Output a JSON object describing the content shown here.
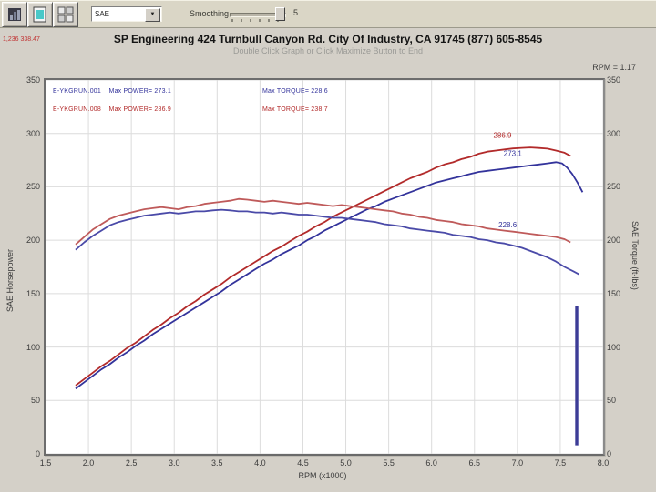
{
  "toolbar": {
    "dropdown_value": "SAE",
    "smoothing_label": "Smoothing",
    "smoothing_value": "5"
  },
  "header": {
    "readout": "1,236 338.47",
    "title": "SP Engineering 424 Turnbull Canyon Rd. City Of Industry, CA 91745 (877) 605-8545",
    "subtitle": "Double Click Graph or Click Maximize Button to End",
    "rpm_readout": "RPM = 1.17"
  },
  "chart_data": {
    "type": "line",
    "title": "SP Engineering 424 Turnbull Canyon Rd. City Of Industry, CA 91745 (877) 605-8545",
    "xlabel": "RPM (x1000)",
    "ylabel_left": "SAE Horsepower",
    "ylabel_right": "SAE Torque (ft-lbs)",
    "xlim": [
      1.5,
      8.0
    ],
    "ylim": [
      0,
      350
    ],
    "grid": true,
    "grid_color": "#dcdcdc",
    "x_tick_labels": [
      "1.5",
      "2.0",
      "2.5",
      "3.0",
      "3.5",
      "4.0",
      "4.5",
      "5.0",
      "5.5",
      "6.0",
      "6.5",
      "7.0",
      "7.5",
      "8.0"
    ],
    "y_tick_labels": [
      "0",
      "50",
      "100",
      "150",
      "200",
      "250",
      "300",
      "350"
    ],
    "legend": {
      "left": [
        {
          "file": "E-YKGRUN.001",
          "label": "Max POWER= 273.1",
          "color": "#33339b"
        },
        {
          "file": "E-YKGRUN.008",
          "label": "Max POWER= 286.9",
          "color": "#b22a2a"
        }
      ],
      "right": [
        {
          "label": "Max TORQUE= 228.6",
          "color": "#33339b"
        },
        {
          "label": "Max TORQUE= 238.7",
          "color": "#b22a2a"
        }
      ]
    },
    "series": [
      {
        "name": "horsepower-run008-red",
        "color": "#b22a2a",
        "width": 1.8,
        "points": [
          [
            1.85,
            64
          ],
          [
            1.95,
            70
          ],
          [
            2.05,
            76
          ],
          [
            2.15,
            82
          ],
          [
            2.25,
            87
          ],
          [
            2.35,
            93
          ],
          [
            2.45,
            99
          ],
          [
            2.55,
            104
          ],
          [
            2.65,
            110
          ],
          [
            2.75,
            116
          ],
          [
            2.85,
            121
          ],
          [
            2.95,
            127
          ],
          [
            3.05,
            132
          ],
          [
            3.15,
            138
          ],
          [
            3.25,
            143
          ],
          [
            3.35,
            149
          ],
          [
            3.45,
            154
          ],
          [
            3.55,
            159
          ],
          [
            3.65,
            165
          ],
          [
            3.75,
            170
          ],
          [
            3.85,
            175
          ],
          [
            3.95,
            180
          ],
          [
            4.05,
            185
          ],
          [
            4.15,
            190
          ],
          [
            4.25,
            194
          ],
          [
            4.35,
            199
          ],
          [
            4.45,
            204
          ],
          [
            4.55,
            208
          ],
          [
            4.65,
            213
          ],
          [
            4.75,
            217
          ],
          [
            4.85,
            222
          ],
          [
            4.95,
            226
          ],
          [
            5.05,
            230
          ],
          [
            5.15,
            234
          ],
          [
            5.25,
            238
          ],
          [
            5.35,
            242
          ],
          [
            5.45,
            246
          ],
          [
            5.55,
            250
          ],
          [
            5.65,
            254
          ],
          [
            5.75,
            258
          ],
          [
            5.85,
            261
          ],
          [
            5.95,
            264
          ],
          [
            6.05,
            268
          ],
          [
            6.15,
            271
          ],
          [
            6.25,
            273
          ],
          [
            6.35,
            276
          ],
          [
            6.45,
            278
          ],
          [
            6.55,
            281
          ],
          [
            6.65,
            283
          ],
          [
            6.75,
            284
          ],
          [
            6.85,
            285
          ],
          [
            6.95,
            286
          ],
          [
            7.05,
            286.5
          ],
          [
            7.15,
            286.9
          ],
          [
            7.25,
            286.4
          ],
          [
            7.35,
            285.8
          ],
          [
            7.45,
            284
          ],
          [
            7.55,
            282
          ],
          [
            7.62,
            279
          ]
        ]
      },
      {
        "name": "horsepower-run001-blue",
        "color": "#33339b",
        "width": 1.8,
        "points": [
          [
            1.85,
            61
          ],
          [
            1.95,
            67
          ],
          [
            2.05,
            73
          ],
          [
            2.15,
            79
          ],
          [
            2.25,
            84
          ],
          [
            2.35,
            90
          ],
          [
            2.45,
            95
          ],
          [
            2.55,
            101
          ],
          [
            2.65,
            106
          ],
          [
            2.75,
            112
          ],
          [
            2.85,
            117
          ],
          [
            2.95,
            122
          ],
          [
            3.05,
            127
          ],
          [
            3.15,
            132
          ],
          [
            3.25,
            137
          ],
          [
            3.35,
            142
          ],
          [
            3.45,
            147
          ],
          [
            3.55,
            152
          ],
          [
            3.65,
            158
          ],
          [
            3.75,
            163
          ],
          [
            3.85,
            168
          ],
          [
            3.95,
            173
          ],
          [
            4.05,
            178
          ],
          [
            4.15,
            182
          ],
          [
            4.25,
            187
          ],
          [
            4.35,
            191
          ],
          [
            4.45,
            195
          ],
          [
            4.55,
            200
          ],
          [
            4.65,
            204
          ],
          [
            4.75,
            209
          ],
          [
            4.85,
            213
          ],
          [
            4.95,
            217
          ],
          [
            5.05,
            221
          ],
          [
            5.15,
            225
          ],
          [
            5.25,
            229
          ],
          [
            5.35,
            232
          ],
          [
            5.45,
            236
          ],
          [
            5.55,
            239
          ],
          [
            5.65,
            242
          ],
          [
            5.75,
            245
          ],
          [
            5.85,
            248
          ],
          [
            5.95,
            251
          ],
          [
            6.05,
            254
          ],
          [
            6.15,
            256
          ],
          [
            6.25,
            258
          ],
          [
            6.35,
            260
          ],
          [
            6.45,
            262
          ],
          [
            6.55,
            264
          ],
          [
            6.65,
            265
          ],
          [
            6.75,
            266
          ],
          [
            6.85,
            267
          ],
          [
            6.95,
            268
          ],
          [
            7.05,
            269
          ],
          [
            7.15,
            270
          ],
          [
            7.25,
            271
          ],
          [
            7.35,
            272
          ],
          [
            7.45,
            273.1
          ],
          [
            7.52,
            272
          ],
          [
            7.58,
            268
          ],
          [
            7.64,
            262
          ],
          [
            7.7,
            254
          ],
          [
            7.76,
            245
          ]
        ]
      },
      {
        "name": "torque-run008-red",
        "color": "#bf5a5a",
        "width": 1.8,
        "points": [
          [
            1.85,
            196
          ],
          [
            1.95,
            203
          ],
          [
            2.05,
            210
          ],
          [
            2.15,
            215
          ],
          [
            2.25,
            220
          ],
          [
            2.35,
            223
          ],
          [
            2.45,
            225
          ],
          [
            2.55,
            227
          ],
          [
            2.65,
            229
          ],
          [
            2.75,
            230
          ],
          [
            2.85,
            231
          ],
          [
            2.95,
            230
          ],
          [
            3.05,
            229
          ],
          [
            3.15,
            231
          ],
          [
            3.25,
            232
          ],
          [
            3.35,
            234
          ],
          [
            3.45,
            235
          ],
          [
            3.55,
            236
          ],
          [
            3.65,
            237
          ],
          [
            3.75,
            238.7
          ],
          [
            3.85,
            238
          ],
          [
            3.95,
            237
          ],
          [
            4.05,
            236
          ],
          [
            4.15,
            237
          ],
          [
            4.25,
            236
          ],
          [
            4.35,
            235
          ],
          [
            4.45,
            234
          ],
          [
            4.55,
            235
          ],
          [
            4.65,
            234
          ],
          [
            4.75,
            233
          ],
          [
            4.85,
            232
          ],
          [
            4.95,
            233
          ],
          [
            5.05,
            232
          ],
          [
            5.15,
            231
          ],
          [
            5.25,
            230
          ],
          [
            5.35,
            229
          ],
          [
            5.45,
            228
          ],
          [
            5.55,
            227
          ],
          [
            5.65,
            225
          ],
          [
            5.75,
            224
          ],
          [
            5.85,
            222
          ],
          [
            5.95,
            221
          ],
          [
            6.05,
            219
          ],
          [
            6.15,
            218
          ],
          [
            6.25,
            217
          ],
          [
            6.35,
            215
          ],
          [
            6.45,
            214
          ],
          [
            6.55,
            213
          ],
          [
            6.65,
            211
          ],
          [
            6.75,
            210
          ],
          [
            6.85,
            209
          ],
          [
            6.95,
            208
          ],
          [
            7.05,
            207
          ],
          [
            7.15,
            206
          ],
          [
            7.25,
            205
          ],
          [
            7.35,
            204
          ],
          [
            7.45,
            203
          ],
          [
            7.55,
            201
          ],
          [
            7.62,
            198
          ]
        ]
      },
      {
        "name": "torque-run001-blue",
        "color": "#4a4aa8",
        "width": 1.8,
        "points": [
          [
            1.85,
            191
          ],
          [
            1.95,
            198
          ],
          [
            2.05,
            204
          ],
          [
            2.15,
            209
          ],
          [
            2.25,
            214
          ],
          [
            2.35,
            217
          ],
          [
            2.45,
            219
          ],
          [
            2.55,
            221
          ],
          [
            2.65,
            223
          ],
          [
            2.75,
            224
          ],
          [
            2.85,
            225
          ],
          [
            2.95,
            226
          ],
          [
            3.05,
            225
          ],
          [
            3.15,
            226
          ],
          [
            3.25,
            227
          ],
          [
            3.35,
            227
          ],
          [
            3.45,
            228
          ],
          [
            3.55,
            228.6
          ],
          [
            3.65,
            228
          ],
          [
            3.75,
            227
          ],
          [
            3.85,
            227
          ],
          [
            3.95,
            226
          ],
          [
            4.05,
            226
          ],
          [
            4.15,
            225
          ],
          [
            4.25,
            226
          ],
          [
            4.35,
            225
          ],
          [
            4.45,
            224
          ],
          [
            4.55,
            224
          ],
          [
            4.65,
            223
          ],
          [
            4.75,
            222
          ],
          [
            4.85,
            221
          ],
          [
            4.95,
            221
          ],
          [
            5.05,
            220
          ],
          [
            5.15,
            219
          ],
          [
            5.25,
            218
          ],
          [
            5.35,
            217
          ],
          [
            5.45,
            215
          ],
          [
            5.55,
            214
          ],
          [
            5.65,
            213
          ],
          [
            5.75,
            211
          ],
          [
            5.85,
            210
          ],
          [
            5.95,
            209
          ],
          [
            6.05,
            208
          ],
          [
            6.15,
            207
          ],
          [
            6.25,
            205
          ],
          [
            6.35,
            204
          ],
          [
            6.45,
            203
          ],
          [
            6.55,
            201
          ],
          [
            6.65,
            200
          ],
          [
            6.75,
            198
          ],
          [
            6.85,
            197
          ],
          [
            6.95,
            195
          ],
          [
            7.05,
            193
          ],
          [
            7.15,
            190
          ],
          [
            7.25,
            187
          ],
          [
            7.35,
            184
          ],
          [
            7.45,
            180
          ],
          [
            7.55,
            175
          ],
          [
            7.65,
            171
          ],
          [
            7.72,
            168
          ]
        ]
      }
    ],
    "annotations": [
      {
        "text": "286.9",
        "rpm": 6.72,
        "val": 296,
        "color": "#b22a2a"
      },
      {
        "text": "273.1",
        "rpm": 6.84,
        "val": 279,
        "color": "#33339b"
      },
      {
        "text": "228.6",
        "rpm": 6.78,
        "val": 212,
        "color": "#33339b"
      }
    ],
    "cursor_line": {
      "rpm": 7.69,
      "val_from": 8,
      "val_to": 138,
      "color": "#3c3c96"
    }
  }
}
